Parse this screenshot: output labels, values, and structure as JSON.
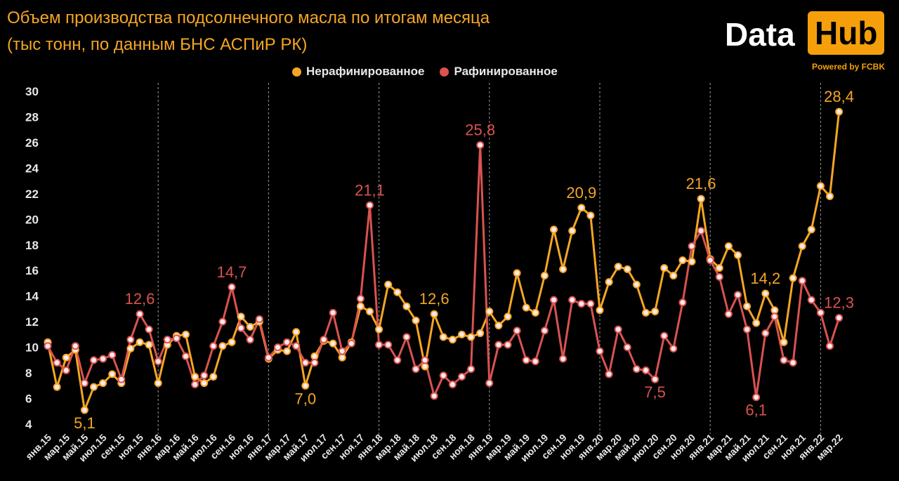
{
  "title_line1": "Объем производства подсолнечного масла по итогам месяца",
  "title_line2": "(тыс тонн, по данным БНС АСПиР РК)",
  "logo": {
    "word1": "Data",
    "word2": "Hub",
    "tagline": "Powered by FCBK"
  },
  "colors": {
    "unrefined": "#f5a623",
    "refined": "#d9534f",
    "background": "#000000",
    "axis_text": "#e8e8e8"
  },
  "chart_data": {
    "type": "line",
    "title": "Объем производства подсолнечного масла по итогам месяца",
    "subtitle": "(тыс тонн, по данным БНС АСПиР РК)",
    "xlabel": "",
    "ylabel": "",
    "ylim": [
      4,
      30
    ],
    "yticks": [
      4,
      6,
      8,
      10,
      12,
      14,
      16,
      18,
      20,
      22,
      24,
      26,
      28,
      30
    ],
    "legend_position": "top-center",
    "grid": "vertical dashed lines at each January",
    "categories": [
      "янв.15",
      "фев.15",
      "мар.15",
      "апр.15",
      "май.15",
      "июн.15",
      "июл.15",
      "авг.15",
      "сен.15",
      "окт.15",
      "ноя.15",
      "дек.15",
      "янв.16",
      "фев.16",
      "мар.16",
      "апр.16",
      "май.16",
      "июн.16",
      "июл.16",
      "авг.16",
      "сен.16",
      "окт.16",
      "ноя.16",
      "дек.16",
      "янв.17",
      "фев.17",
      "мар.17",
      "апр.17",
      "май.17",
      "июн.17",
      "июл.17",
      "авг.17",
      "сен.17",
      "окт.17",
      "ноя.17",
      "дек.17",
      "янв.18",
      "фев.18",
      "мар.18",
      "апр.18",
      "май.18",
      "июн.18",
      "июл.18",
      "авг.18",
      "сен.18",
      "окт.18",
      "ноя.18",
      "дек.18",
      "янв.19",
      "фев.19",
      "мар.19",
      "апр.19",
      "май.19",
      "июн.19",
      "июл.19",
      "авг.19",
      "сен.19",
      "окт.19",
      "ноя.19",
      "дек.19",
      "янв.20",
      "фев.20",
      "мар.20",
      "апр.20",
      "май.20",
      "июн.20",
      "июл.20",
      "авг.20",
      "сен.20",
      "окт.20",
      "ноя.20",
      "дек.20",
      "янв.21",
      "фев.21",
      "мар.21",
      "апр.21",
      "май.21",
      "июн.21",
      "июл.21",
      "авг.21",
      "сен.21",
      "окт.21",
      "ноя.21",
      "дек.21",
      "янв.22",
      "фев.22",
      "мар.22"
    ],
    "tick_labels": [
      "янв.15",
      "мар.15",
      "май.15",
      "июл.15",
      "сен.15",
      "ноя.15",
      "янв.16",
      "мар.16",
      "май.16",
      "июл.16",
      "сен.16",
      "ноя.16",
      "янв.17",
      "мар.17",
      "май.17",
      "июл.17",
      "сен.17",
      "ноя.17",
      "янв.18",
      "мар.18",
      "май.18",
      "июл.18",
      "сен.18",
      "ноя.18",
      "янв.19",
      "мар.19",
      "май.19",
      "июл.19",
      "сен.19",
      "ноя.19",
      "янв.20",
      "мар.20",
      "май.20",
      "июл.20",
      "сен.20",
      "ноя.20",
      "янв.21",
      "мар.21",
      "май.21",
      "июл.21",
      "сен.21",
      "ноя.21",
      "янв.22",
      "мар.22"
    ],
    "series": [
      {
        "name": "Нерафинированное",
        "color": "#f5a623",
        "values": [
          10.4,
          6.9,
          9.2,
          9.8,
          5.1,
          6.9,
          7.2,
          7.9,
          7.2,
          9.9,
          10.4,
          10.2,
          7.2,
          10.2,
          10.9,
          11.0,
          7.7,
          7.2,
          7.7,
          10.1,
          10.4,
          12.4,
          11.6,
          12.0,
          9.1,
          9.8,
          9.7,
          11.2,
          7.0,
          9.3,
          10.5,
          10.3,
          9.2,
          10.4,
          13.2,
          12.8,
          11.4,
          14.9,
          14.3,
          13.2,
          12.1,
          8.5,
          12.6,
          10.8,
          10.6,
          11.0,
          10.8,
          11.1,
          12.8,
          11.7,
          12.4,
          15.8,
          13.1,
          12.7,
          15.6,
          19.2,
          16.1,
          19.1,
          20.9,
          20.3,
          12.9,
          15.1,
          16.3,
          16.1,
          14.9,
          12.7,
          12.8,
          16.2,
          15.6,
          16.8,
          16.7,
          21.6,
          16.9,
          16.2,
          17.9,
          17.2,
          13.2,
          11.9,
          14.2,
          12.9,
          10.4,
          15.4,
          17.9,
          19.2,
          22.6,
          21.8,
          28.4
        ]
      },
      {
        "name": "Рафинированное",
        "color": "#d9534f",
        "values": [
          10.1,
          8.8,
          8.2,
          10.1,
          7.2,
          9.0,
          9.1,
          9.4,
          7.5,
          10.6,
          12.6,
          11.4,
          8.9,
          10.6,
          10.7,
          9.3,
          7.1,
          7.8,
          10.1,
          12.0,
          14.7,
          11.5,
          10.6,
          12.2,
          9.2,
          10.0,
          10.4,
          10.1,
          8.8,
          8.8,
          10.6,
          12.7,
          9.7,
          10.3,
          13.8,
          21.1,
          10.2,
          10.2,
          9.0,
          10.8,
          8.3,
          9.0,
          6.2,
          7.8,
          7.1,
          7.7,
          8.3,
          25.8,
          7.2,
          10.2,
          10.2,
          11.3,
          9.0,
          8.9,
          11.3,
          13.7,
          9.1,
          13.7,
          13.4,
          13.4,
          9.7,
          7.9,
          11.4,
          10.0,
          8.3,
          8.2,
          7.5,
          10.9,
          9.9,
          13.5,
          17.9,
          19.1,
          16.8,
          15.5,
          12.6,
          14.1,
          11.4,
          6.1,
          11.1,
          12.4,
          9.0,
          8.8,
          15.2,
          13.7,
          12.7,
          10.1,
          12.3
        ]
      }
    ],
    "annotations": [
      {
        "series": 1,
        "index": 10,
        "text": "12,6"
      },
      {
        "series": 0,
        "index": 4,
        "text": "5,1"
      },
      {
        "series": 1,
        "index": 20,
        "text": "14,7"
      },
      {
        "series": 0,
        "index": 28,
        "text": "7,0"
      },
      {
        "series": 1,
        "index": 35,
        "text": "21,1"
      },
      {
        "series": 0,
        "index": 42,
        "text": "12,6"
      },
      {
        "series": 1,
        "index": 47,
        "text": "25,8"
      },
      {
        "series": 0,
        "index": 58,
        "text": "20,9"
      },
      {
        "series": 1,
        "index": 66,
        "text": "7,5"
      },
      {
        "series": 0,
        "index": 71,
        "text": "21,6"
      },
      {
        "series": 0,
        "index": 78,
        "text": "14,2"
      },
      {
        "series": 1,
        "index": 77,
        "text": "6,1"
      },
      {
        "series": 0,
        "index": 86,
        "text": "28,4"
      },
      {
        "series": 1,
        "index": 86,
        "text": "12,3"
      }
    ]
  }
}
